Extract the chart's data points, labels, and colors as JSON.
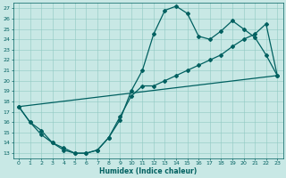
{
  "xlabel": "Humidex (Indice chaleur)",
  "xlim": [
    -0.5,
    23.5
  ],
  "ylim": [
    12.5,
    27.5
  ],
  "xticks": [
    0,
    1,
    2,
    3,
    4,
    5,
    6,
    7,
    8,
    9,
    10,
    11,
    12,
    13,
    14,
    15,
    16,
    17,
    18,
    19,
    20,
    21,
    22,
    23
  ],
  "yticks": [
    13,
    14,
    15,
    16,
    17,
    18,
    19,
    20,
    21,
    22,
    23,
    24,
    25,
    26,
    27
  ],
  "bg_color": "#c8e8e5",
  "grid_color": "#8fc8c2",
  "line_color": "#006060",
  "line1_x": [
    0,
    1,
    2,
    3,
    4,
    5,
    6,
    7,
    8,
    9,
    10,
    11,
    12,
    13,
    14,
    15,
    16,
    17,
    18,
    19,
    20,
    21,
    22,
    23
  ],
  "line1_y": [
    17.5,
    16.0,
    14.8,
    14.0,
    13.3,
    13.0,
    13.0,
    13.3,
    14.5,
    16.2,
    19.0,
    21.0,
    24.5,
    26.8,
    27.2,
    26.5,
    24.3,
    24.0,
    24.8,
    25.8,
    25.0,
    24.2,
    22.5,
    20.5
  ],
  "line2_x": [
    0,
    1,
    2,
    3,
    4,
    5,
    6,
    7,
    8,
    9,
    10,
    11,
    12,
    13,
    14,
    15,
    16,
    17,
    18,
    19,
    20,
    21,
    22,
    23
  ],
  "line2_y": [
    17.5,
    16.0,
    15.2,
    14.0,
    13.5,
    13.0,
    13.0,
    13.3,
    14.5,
    16.5,
    18.5,
    19.5,
    19.5,
    20.0,
    20.5,
    21.0,
    21.5,
    22.0,
    22.5,
    23.3,
    24.0,
    24.5,
    25.5,
    20.5
  ],
  "line3_x": [
    0,
    23
  ],
  "line3_y": [
    17.5,
    20.5
  ],
  "marker": "D",
  "markersize": 2,
  "linewidth": 0.9
}
